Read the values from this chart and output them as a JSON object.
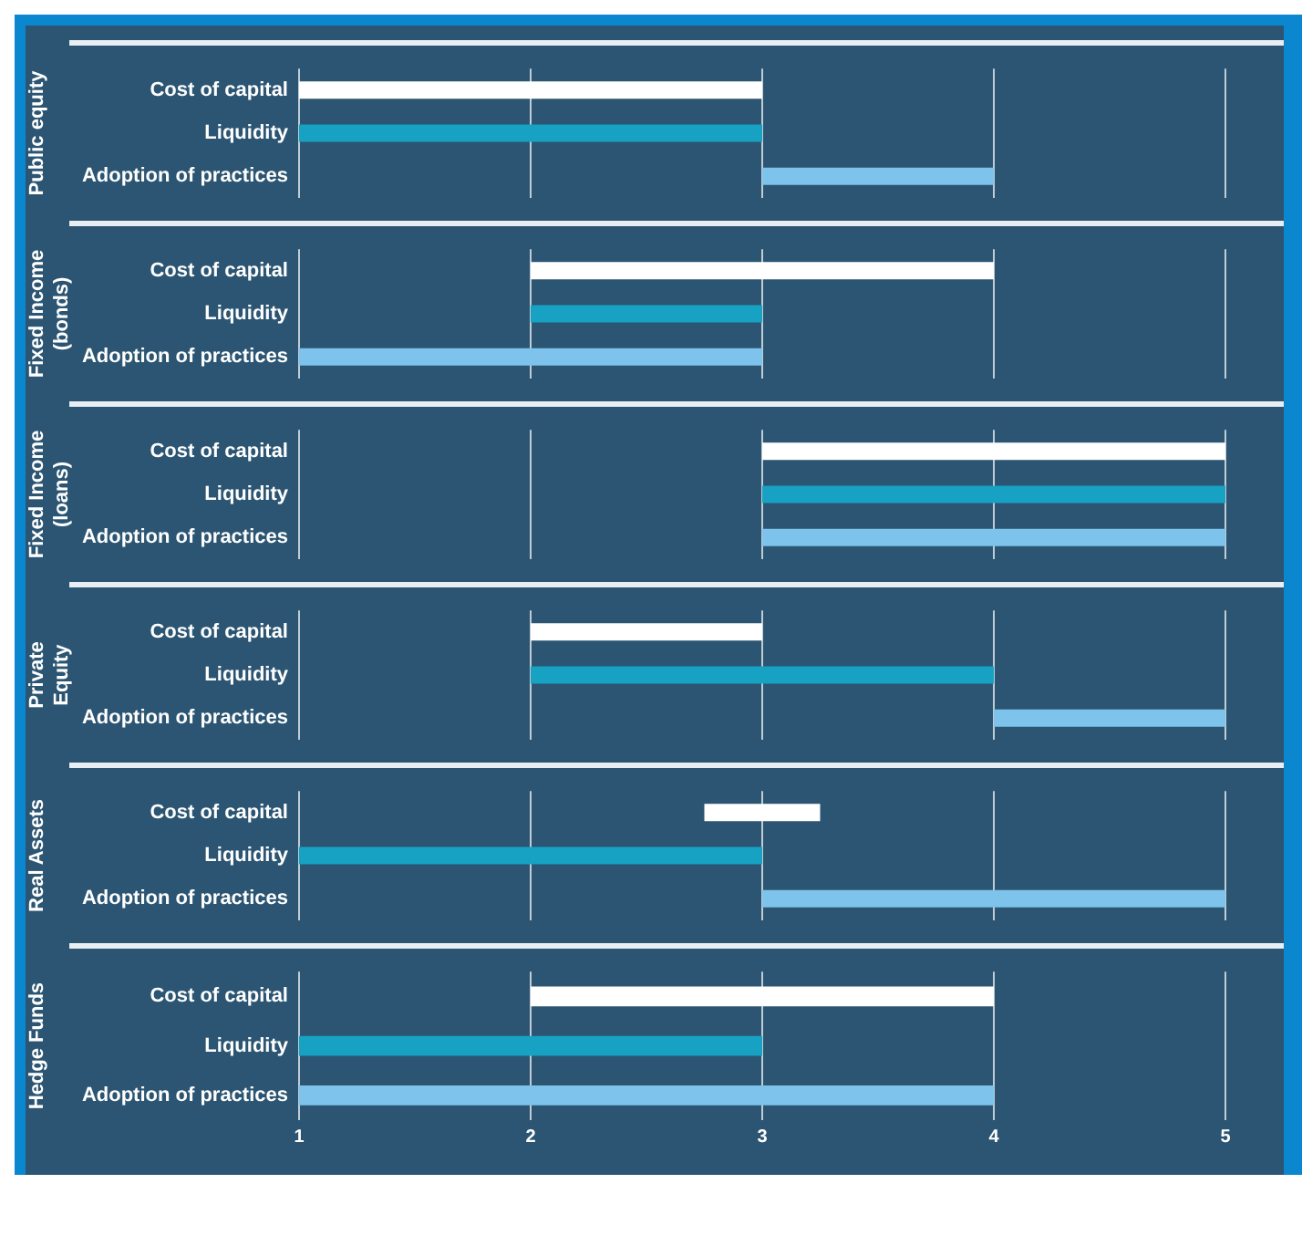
{
  "chart_data": [
    {
      "type": "bar",
      "orientation": "horizontal",
      "ylabel": "Public equity",
      "categories": [
        "Cost of capital",
        "Liquidity",
        "Adoption of practices"
      ],
      "base": [
        1,
        1,
        3
      ],
      "values": [
        2,
        2,
        1
      ],
      "colors": [
        "#ffffff",
        "#17a2c4",
        "#7dc3ec"
      ],
      "xlim": [
        1,
        5
      ],
      "xticks": [
        1,
        2,
        3,
        4,
        5
      ],
      "grid": "x",
      "tick_labels": "y"
    },
    {
      "type": "bar",
      "orientation": "horizontal",
      "ylabel": "Fixed Income (bonds)",
      "categories": [
        "Cost of capital",
        "Liquidity",
        "Adoption of practices"
      ],
      "base": [
        2,
        2,
        1
      ],
      "values": [
        2,
        1,
        2
      ],
      "colors": [
        "#ffffff",
        "#17a2c4",
        "#7dc3ec"
      ],
      "xlim": [
        1,
        5
      ],
      "xticks": [
        1,
        2,
        3,
        4,
        5
      ],
      "grid": "x",
      "tick_labels": "y"
    },
    {
      "type": "bar",
      "orientation": "horizontal",
      "ylabel": "Fixed Income (loans)",
      "categories": [
        "Cost of capital",
        "Liquidity",
        "Adoption of practices"
      ],
      "base": [
        3,
        3,
        3
      ],
      "values": [
        2,
        2,
        2
      ],
      "colors": [
        "#ffffff",
        "#17a2c4",
        "#7dc3ec"
      ],
      "xlim": [
        1,
        5
      ],
      "xticks": [
        1,
        2,
        3,
        4,
        5
      ],
      "grid": "x",
      "tick_labels": "y"
    },
    {
      "type": "bar",
      "orientation": "horizontal",
      "ylabel": "Private Equity",
      "categories": [
        "Cost of capital",
        "Liquidity",
        "Adoption of practices"
      ],
      "base": [
        2,
        2,
        4
      ],
      "values": [
        1,
        2,
        1
      ],
      "colors": [
        "#ffffff",
        "#17a2c4",
        "#7dc3ec"
      ],
      "xlim": [
        1,
        5
      ],
      "xticks": [
        1,
        2,
        3,
        4,
        5
      ],
      "grid": "x",
      "tick_labels": "y"
    },
    {
      "type": "bar",
      "orientation": "horizontal",
      "ylabel": "Real Assets",
      "categories": [
        "Cost of capital",
        "Liquidity",
        "Adoption of practices"
      ],
      "base": [
        2.75,
        1,
        3
      ],
      "values": [
        0.5,
        2,
        2
      ],
      "colors": [
        "#ffffff",
        "#17a2c4",
        "#7dc3ec"
      ],
      "xlim": [
        1,
        5
      ],
      "xticks": [
        1,
        2,
        3,
        4,
        5
      ],
      "grid": "x",
      "tick_labels": "y"
    },
    {
      "type": "bar",
      "orientation": "horizontal",
      "ylabel": "Hedge Funds",
      "categories": [
        "Cost of capital",
        "Liquidity",
        "Adoption of practices"
      ],
      "base": [
        2,
        1,
        1
      ],
      "values": [
        2,
        2,
        3
      ],
      "colors": [
        "#ffffff",
        "#17a2c4",
        "#7dc3ec"
      ],
      "xlim": [
        1,
        5
      ],
      "xticks": [
        1,
        2,
        3,
        4,
        5
      ],
      "grid": "x"
    }
  ]
}
